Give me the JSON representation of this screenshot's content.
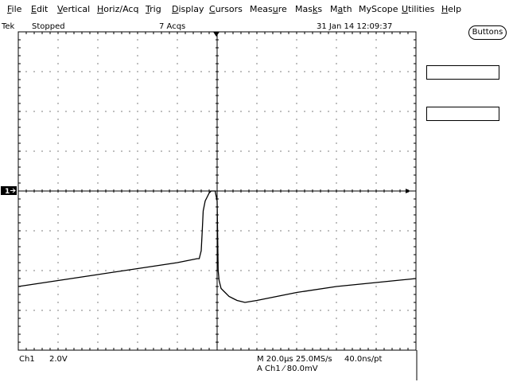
{
  "menu": {
    "items": [
      {
        "pre": "",
        "key": "F",
        "post": "ile"
      },
      {
        "pre": "",
        "key": "E",
        "post": "dit"
      },
      {
        "pre": "",
        "key": "V",
        "post": "ertical"
      },
      {
        "pre": "",
        "key": "H",
        "post": "oriz/Acq"
      },
      {
        "pre": "",
        "key": "T",
        "post": "rig"
      },
      {
        "pre": "",
        "key": "D",
        "post": "isplay"
      },
      {
        "pre": "",
        "key": "C",
        "post": "ursors"
      },
      {
        "pre": "Meas",
        "key": "u",
        "post": "re"
      },
      {
        "pre": "Mas",
        "key": "k",
        "post": "s"
      },
      {
        "pre": "M",
        "key": "a",
        "post": "th"
      },
      {
        "pre": "MyScope",
        "key": "",
        "post": ""
      },
      {
        "pre": "",
        "key": "U",
        "post": "tilities"
      },
      {
        "pre": "",
        "key": "H",
        "post": "elp"
      }
    ]
  },
  "status": {
    "brand": "Tek",
    "state": "Stopped",
    "acqs": "7 Acqs",
    "datetime": "31 Jan 14 12:09:37"
  },
  "buttons_label": "Buttons",
  "channel_marker": "1",
  "bottom": {
    "ch": "Ch1",
    "volts_per_div": "2.0V",
    "horiz": "M 20.0µs 25.0MS/s",
    "rate": "40.0ns/pt",
    "trigger": "A  Ch1  ⁄  80.0mV"
  },
  "colors": {
    "background": "#ffffff",
    "trace": "#000000",
    "grid": "#000000",
    "marker_bg": "#000000"
  },
  "chart_data": {
    "type": "line",
    "title": "",
    "xlabel": "",
    "ylabel": "",
    "x_divisions": 10,
    "y_divisions": 8,
    "xlim": [
      -100,
      100
    ],
    "ylim": [
      -8,
      8
    ],
    "x_unit_per_div_label": "20.0µs",
    "y_unit_per_div_label": "2.0V",
    "grid": true,
    "series": [
      {
        "x": [
          -100,
          -80,
          -60,
          -40,
          -20,
          -10,
          -9,
          -8,
          -7.5,
          -7,
          -6,
          -5,
          -4,
          -3,
          -2,
          -1,
          0,
          0.5,
          1,
          2,
          4,
          6,
          8,
          10,
          14,
          20,
          30,
          40,
          60,
          80,
          100
        ],
        "y": [
          -4.8,
          -4.5,
          -4.2,
          -3.9,
          -3.6,
          -3.4,
          -3.4,
          -3.0,
          -2.0,
          -1.0,
          -0.5,
          -0.3,
          -0.1,
          0,
          0,
          0,
          -0.5,
          -4.0,
          -4.5,
          -4.9,
          -5.1,
          -5.3,
          -5.4,
          -5.5,
          -5.6,
          -5.5,
          -5.3,
          -5.1,
          -4.8,
          -4.6,
          -4.4
        ]
      }
    ]
  }
}
